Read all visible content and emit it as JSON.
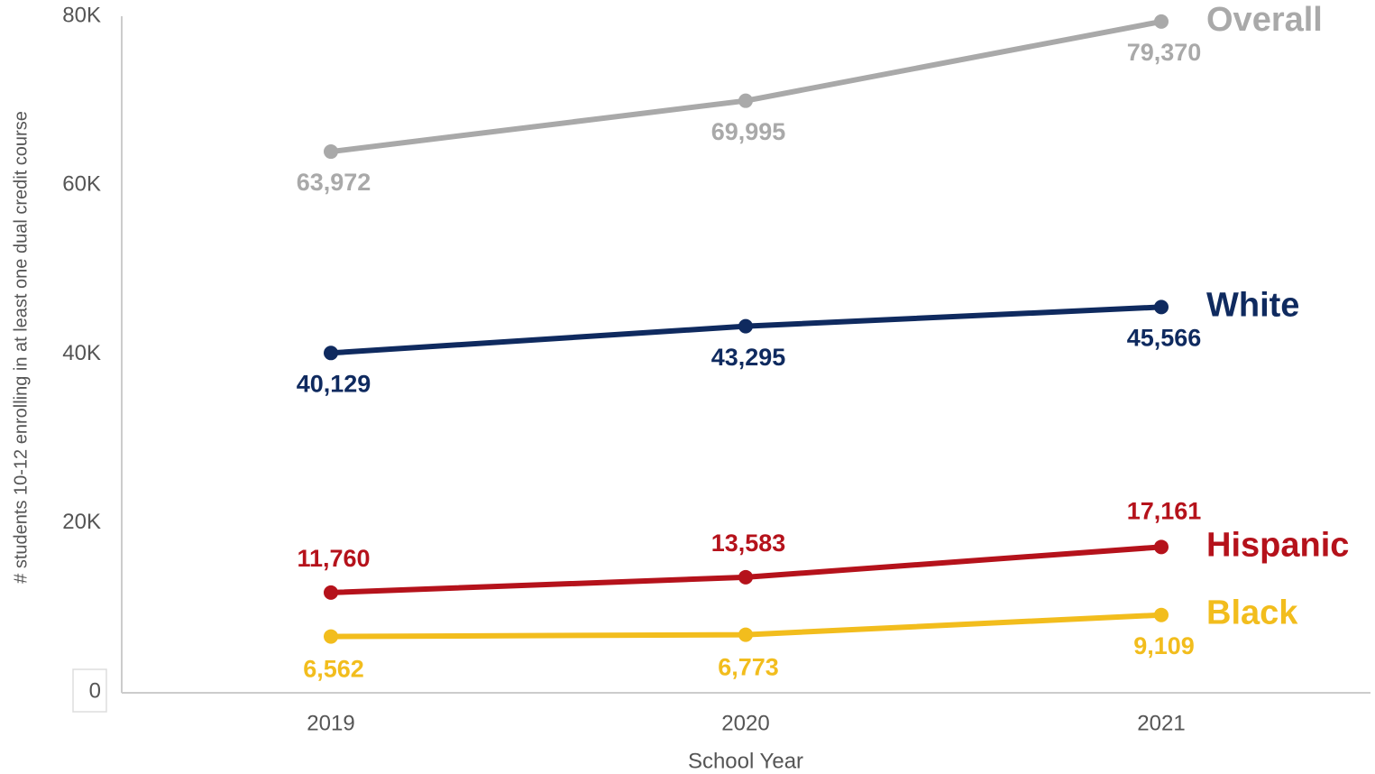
{
  "chart_data": {
    "type": "line",
    "x_label": "School Year",
    "y_label": "# students 10-12 enrolling in at least one dual credit course",
    "categories": [
      "2019",
      "2020",
      "2021"
    ],
    "ylim": [
      0,
      80000
    ],
    "yticks": [
      0,
      {
        "value": 20000,
        "label": "20K"
      },
      {
        "value": 40000,
        "label": "40K"
      },
      {
        "value": 60000,
        "label": "60K"
      },
      {
        "value": 80000,
        "label": "80K"
      }
    ],
    "series": [
      {
        "name": "Overall",
        "color": "#a9a9a9",
        "values": [
          63972,
          69995,
          79370
        ],
        "value_labels": [
          "63,972",
          "69,995",
          "79,370"
        ]
      },
      {
        "name": "White",
        "color": "#0f2a5f",
        "values": [
          40129,
          43295,
          45566
        ],
        "value_labels": [
          "40,129",
          "43,295",
          "45,566"
        ]
      },
      {
        "name": "Hispanic",
        "color": "#b5121b",
        "values": [
          11760,
          13583,
          17161
        ],
        "value_labels": [
          "11,760",
          "13,583",
          "17,161"
        ]
      },
      {
        "name": "Black",
        "color": "#f2bd1d",
        "values": [
          6562,
          6773,
          9109
        ],
        "value_labels": [
          "6,562",
          "6,773",
          "9,109"
        ]
      }
    ]
  }
}
